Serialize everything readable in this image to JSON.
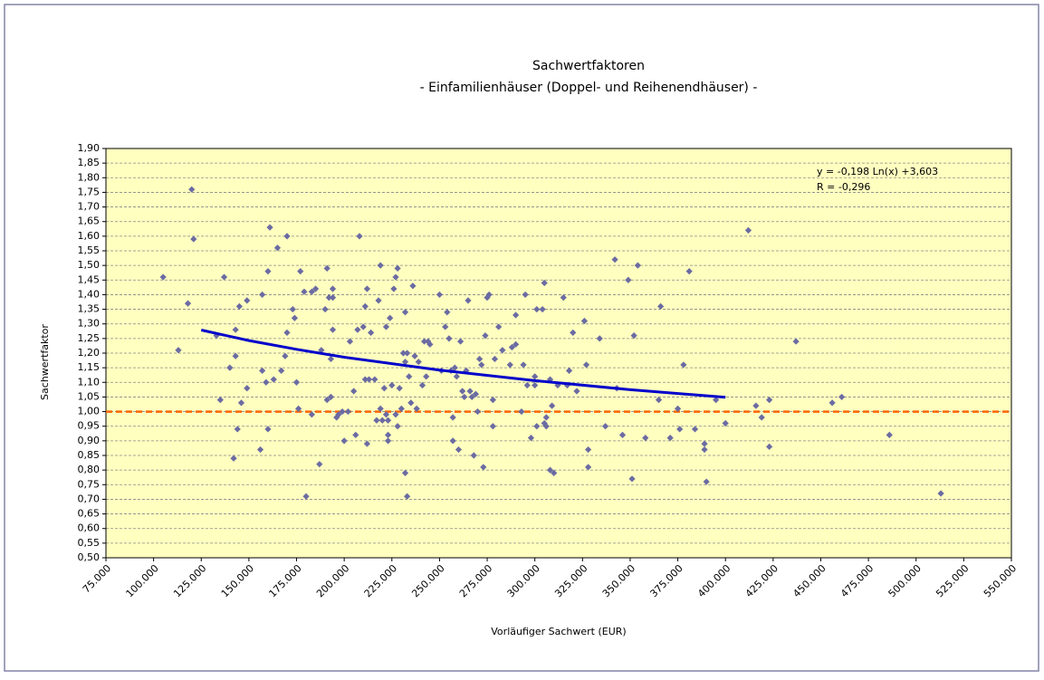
{
  "chart_data": {
    "type": "scatter",
    "title": "Sachwertfaktoren",
    "subtitle": "- Einfamilienhäuser (Doppel- und Reihenendhäuser) -",
    "xlabel": "Vorläufiger  Sachwert (EUR)",
    "ylabel": "Sachwertfaktor",
    "annotation": [
      "y = -0,198 Ln(x) +3,603",
      "R = -0,296"
    ],
    "xlim": [
      75000,
      550000
    ],
    "ylim": [
      0.5,
      1.9
    ],
    "grid": true,
    "xticks": [
      {
        "value": 75000,
        "label": "75.000"
      },
      {
        "value": 100000,
        "label": "100.000"
      },
      {
        "value": 125000,
        "label": "125.000"
      },
      {
        "value": 150000,
        "label": "150.000"
      },
      {
        "value": 175000,
        "label": "175.000"
      },
      {
        "value": 200000,
        "label": "200.000"
      },
      {
        "value": 225000,
        "label": "225.000"
      },
      {
        "value": 250000,
        "label": "250.000"
      },
      {
        "value": 275000,
        "label": "275.000"
      },
      {
        "value": 300000,
        "label": "300.000"
      },
      {
        "value": 325000,
        "label": "325.000"
      },
      {
        "value": 350000,
        "label": "350.000"
      },
      {
        "value": 375000,
        "label": "375.000"
      },
      {
        "value": 400000,
        "label": "400.000"
      },
      {
        "value": 425000,
        "label": "425.000"
      },
      {
        "value": 450000,
        "label": "450.000"
      },
      {
        "value": 475000,
        "label": "475.000"
      },
      {
        "value": 500000,
        "label": "500.000"
      },
      {
        "value": 525000,
        "label": "525.000"
      },
      {
        "value": 550000,
        "label": "550.000"
      }
    ],
    "yticks": [
      {
        "value": 0.5,
        "label": "0,50"
      },
      {
        "value": 0.55,
        "label": "0,55"
      },
      {
        "value": 0.6,
        "label": "0,60"
      },
      {
        "value": 0.65,
        "label": "0,65"
      },
      {
        "value": 0.7,
        "label": "0,70"
      },
      {
        "value": 0.75,
        "label": "0,75"
      },
      {
        "value": 0.8,
        "label": "0,80"
      },
      {
        "value": 0.85,
        "label": "0,85"
      },
      {
        "value": 0.9,
        "label": "0,90"
      },
      {
        "value": 0.95,
        "label": "0,95"
      },
      {
        "value": 1.0,
        "label": "1,00"
      },
      {
        "value": 1.05,
        "label": "1,05"
      },
      {
        "value": 1.1,
        "label": "1,10"
      },
      {
        "value": 1.15,
        "label": "1,15"
      },
      {
        "value": 1.2,
        "label": "1,20"
      },
      {
        "value": 1.25,
        "label": "1,25"
      },
      {
        "value": 1.3,
        "label": "1,30"
      },
      {
        "value": 1.35,
        "label": "1,35"
      },
      {
        "value": 1.4,
        "label": "1,40"
      },
      {
        "value": 1.45,
        "label": "1,45"
      },
      {
        "value": 1.5,
        "label": "1,50"
      },
      {
        "value": 1.55,
        "label": "1,55"
      },
      {
        "value": 1.6,
        "label": "1,60"
      },
      {
        "value": 1.65,
        "label": "1,65"
      },
      {
        "value": 1.7,
        "label": "1,70"
      },
      {
        "value": 1.75,
        "label": "1,75"
      },
      {
        "value": 1.8,
        "label": "1,80"
      },
      {
        "value": 1.85,
        "label": "1,85"
      },
      {
        "value": 1.9,
        "label": "1,90"
      }
    ],
    "reference_line": {
      "value": 1.0,
      "color": "#ff6600"
    },
    "trendline": {
      "color": "#0000cc",
      "x": [
        125000,
        150000,
        175000,
        200000,
        250000,
        300000,
        350000,
        400000
      ],
      "values": [
        1.279,
        1.243,
        1.213,
        1.186,
        1.142,
        1.106,
        1.075,
        1.049
      ]
    },
    "series": [
      {
        "color": "#6b6ba3",
        "x": [
          105000,
          113000,
          118000,
          120000,
          121000,
          133000,
          135000,
          137000,
          140000,
          142000,
          143000,
          143000,
          144000,
          145000,
          146000,
          149000,
          149000,
          156000,
          157000,
          157000,
          159000,
          160000,
          160000,
          161000,
          163000,
          165000,
          167000,
          169000,
          170000,
          170000,
          173000,
          174000,
          175000,
          176000,
          177000,
          179000,
          180000,
          183000,
          183000,
          185000,
          187000,
          188000,
          190000,
          191000,
          191000,
          192000,
          193000,
          193000,
          194000,
          194000,
          194000,
          196000,
          197000,
          199000,
          200000,
          202000,
          203000,
          205000,
          206000,
          207000,
          208000,
          210000,
          211000,
          211000,
          212000,
          212000,
          213000,
          214000,
          216000,
          217000,
          218000,
          219000,
          219000,
          220000,
          221000,
          222000,
          222000,
          223000,
          223000,
          223000,
          224000,
          225000,
          226000,
          227000,
          227000,
          228000,
          228000,
          229000,
          230000,
          231000,
          232000,
          232000,
          232000,
          233000,
          233000,
          234000,
          235000,
          236000,
          237000,
          238000,
          239000,
          241000,
          242000,
          243000,
          244000,
          245000,
          250000,
          251000,
          253000,
          254000,
          255000,
          256000,
          257000,
          257000,
          258000,
          259000,
          260000,
          261000,
          262000,
          263000,
          264000,
          265000,
          266000,
          267000,
          268000,
          269000,
          270000,
          271000,
          272000,
          273000,
          274000,
          275000,
          276000,
          278000,
          278000,
          279000,
          281000,
          283000,
          287000,
          288000,
          290000,
          290000,
          293000,
          294000,
          295000,
          296000,
          298000,
          300000,
          300000,
          301000,
          301000,
          304000,
          305000,
          305000,
          306000,
          306000,
          308000,
          308000,
          309000,
          310000,
          312000,
          315000,
          317000,
          318000,
          320000,
          322000,
          326000,
          327000,
          328000,
          328000,
          334000,
          337000,
          342000,
          343000,
          346000,
          349000,
          351000,
          352000,
          354000,
          358000,
          365000,
          366000,
          371000,
          375000,
          376000,
          378000,
          381000,
          384000,
          389000,
          389000,
          390000,
          395000,
          400000,
          412000,
          416000,
          419000,
          423000,
          423000,
          437000,
          456000,
          461000,
          486000,
          513000
        ],
        "values": [
          1.46,
          1.21,
          1.37,
          1.76,
          1.59,
          1.26,
          1.04,
          1.46,
          1.15,
          0.84,
          1.19,
          1.28,
          0.94,
          1.36,
          1.03,
          1.38,
          1.08,
          0.87,
          1.14,
          1.4,
          1.1,
          1.48,
          0.94,
          1.63,
          1.11,
          1.56,
          1.14,
          1.19,
          1.6,
          1.27,
          1.35,
          1.32,
          1.1,
          1.01,
          1.48,
          1.41,
          0.71,
          0.99,
          1.41,
          1.42,
          0.82,
          1.21,
          1.35,
          1.04,
          1.49,
          1.39,
          1.05,
          1.18,
          1.42,
          1.39,
          1.28,
          0.98,
          0.99,
          1.0,
          0.9,
          1.0,
          1.24,
          1.07,
          0.92,
          1.28,
          1.6,
          1.29,
          1.11,
          1.36,
          0.89,
          1.42,
          1.11,
          1.27,
          1.11,
          0.97,
          1.38,
          1.01,
          1.5,
          0.97,
          1.08,
          0.99,
          1.29,
          0.9,
          0.97,
          0.92,
          1.32,
          1.09,
          1.42,
          0.99,
          1.46,
          0.95,
          1.49,
          1.08,
          1.01,
          1.2,
          0.79,
          1.34,
          1.17,
          1.2,
          0.71,
          1.12,
          1.03,
          1.43,
          1.19,
          1.01,
          1.17,
          1.09,
          1.24,
          1.12,
          1.24,
          1.23,
          1.4,
          1.14,
          1.29,
          1.34,
          1.25,
          1.14,
          0.98,
          0.9,
          1.15,
          1.12,
          0.87,
          1.24,
          1.07,
          1.05,
          1.14,
          1.38,
          1.07,
          1.05,
          0.85,
          1.06,
          1.0,
          1.18,
          1.16,
          0.81,
          1.26,
          1.39,
          1.4,
          1.04,
          0.95,
          1.18,
          1.29,
          1.21,
          1.16,
          1.22,
          1.23,
          1.33,
          1.0,
          1.16,
          1.4,
          1.09,
          0.91,
          1.09,
          1.12,
          0.95,
          1.35,
          1.35,
          1.44,
          0.96,
          0.95,
          0.98,
          1.11,
          0.8,
          1.02,
          0.79,
          1.09,
          1.39,
          1.09,
          1.14,
          1.27,
          1.07,
          1.31,
          1.16,
          0.81,
          0.87,
          1.25,
          0.95,
          1.52,
          1.08,
          0.92,
          1.45,
          0.77,
          1.26,
          1.5,
          0.91,
          1.04,
          1.36,
          0.91,
          1.01,
          0.94,
          1.16,
          1.48,
          0.94,
          0.89,
          0.87,
          0.76,
          1.04,
          0.96,
          1.62,
          1.02,
          0.98,
          1.04,
          0.88,
          1.24,
          1.03,
          1.05,
          0.92,
          0.72
        ]
      }
    ]
  }
}
